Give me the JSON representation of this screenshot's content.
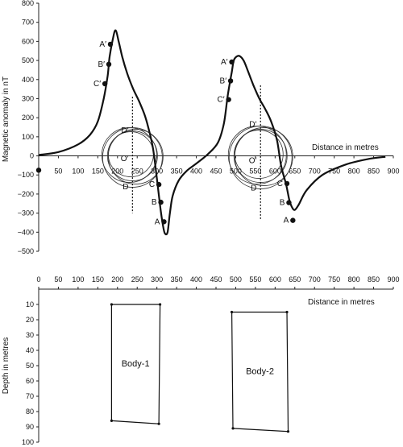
{
  "chart_data": [
    {
      "type": "line",
      "xlabel": "Distance in metres",
      "ylabel": "Magnetic anomaly in nT",
      "xlim": [
        0,
        900
      ],
      "ylim": [
        -500,
        800
      ],
      "x_ticks": [
        "50",
        "100",
        "150",
        "200",
        "250",
        "300",
        "350",
        "400",
        "450",
        "500",
        "550",
        "600",
        "650",
        "700",
        "750",
        "800",
        "850",
        "900"
      ],
      "y_ticks": [
        "800",
        "700",
        "600",
        "500",
        "400",
        "300",
        "200",
        "100",
        "0",
        "−100",
        "−200",
        "−300",
        "−400",
        "−500"
      ],
      "series": [
        {
          "x": [
            0,
            50,
            100,
            130,
            150,
            165,
            175,
            180,
            188,
            195,
            203,
            212,
            225,
            240,
            255,
            268,
            278,
            290,
            300,
            308,
            315,
            320,
            327,
            333,
            340,
            355,
            375,
            400,
            430,
            455,
            470,
            480,
            490,
            495,
            502,
            510,
            520,
            530,
            545,
            560,
            575,
            590,
            605,
            615,
            628,
            636,
            643,
            650,
            660,
            680,
            720,
            780,
            840,
            880
          ],
          "y": [
            5,
            20,
            60,
            110,
            180,
            300,
            420,
            520,
            610,
            658,
            600,
            520,
            430,
            350,
            285,
            220,
            150,
            40,
            -120,
            -260,
            -360,
            -405,
            -400,
            -300,
            -210,
            -130,
            -80,
            -40,
            10,
            70,
            170,
            320,
            440,
            500,
            520,
            523,
            500,
            450,
            370,
            300,
            245,
            180,
            80,
            -50,
            -150,
            -230,
            -270,
            -283,
            -255,
            -180,
            -100,
            -45,
            -15,
            -5
          ]
        }
      ],
      "points": [
        {
          "label": "A′",
          "x": 182,
          "y": 585
        },
        {
          "label": "B′",
          "x": 178,
          "y": 480
        },
        {
          "label": "C′",
          "x": 168,
          "y": 378
        },
        {
          "label": "C",
          "x": 305,
          "y": -150
        },
        {
          "label": "B",
          "x": 310,
          "y": -243
        },
        {
          "label": "A",
          "x": 318,
          "y": -345
        },
        {
          "label": "A′",
          "x": 490,
          "y": 492
        },
        {
          "label": "B′",
          "x": 487,
          "y": 393
        },
        {
          "label": "C′",
          "x": 482,
          "y": 295
        },
        {
          "label": "C",
          "x": 630,
          "y": -145
        },
        {
          "label": "B",
          "x": 635,
          "y": -245
        },
        {
          "label": "A",
          "x": 645,
          "y": -338
        },
        {
          "label": "",
          "x": 0,
          "y": -75
        }
      ],
      "circle_labels": [
        {
          "label": "D′",
          "x": 228,
          "y": 137
        },
        {
          "label": "O′",
          "x": 228,
          "y": -10
        },
        {
          "label": "D",
          "x": 228,
          "y": -158
        },
        {
          "label": "D′",
          "x": 553,
          "y": 168
        },
        {
          "label": "O′",
          "x": 553,
          "y": -20
        },
        {
          "label": "D",
          "x": 553,
          "y": -165
        }
      ]
    },
    {
      "type": "scatter",
      "xlabel": "Distance in metres",
      "ylabel": "Depth in metres",
      "xlim": [
        0,
        900
      ],
      "ylim": [
        100,
        0
      ],
      "x_ticks": [
        "0",
        "50",
        "100",
        "150",
        "200",
        "250",
        "300",
        "350",
        "400",
        "450",
        "500",
        "550",
        "600",
        "650",
        "700",
        "750",
        "800",
        "850",
        "900"
      ],
      "y_ticks": [
        "10",
        "20",
        "30",
        "40",
        "50",
        "60",
        "70",
        "80",
        "90",
        "100"
      ],
      "bodies": [
        {
          "name": "Body-1",
          "outline": [
            [
              185,
              10
            ],
            [
              308,
              10
            ],
            [
              305,
              88
            ],
            [
              185,
              86
            ]
          ]
        },
        {
          "name": "Body-2",
          "outline": [
            [
              490,
              15
            ],
            [
              630,
              15
            ],
            [
              633,
              93
            ],
            [
              493,
              91
            ]
          ]
        }
      ]
    }
  ]
}
